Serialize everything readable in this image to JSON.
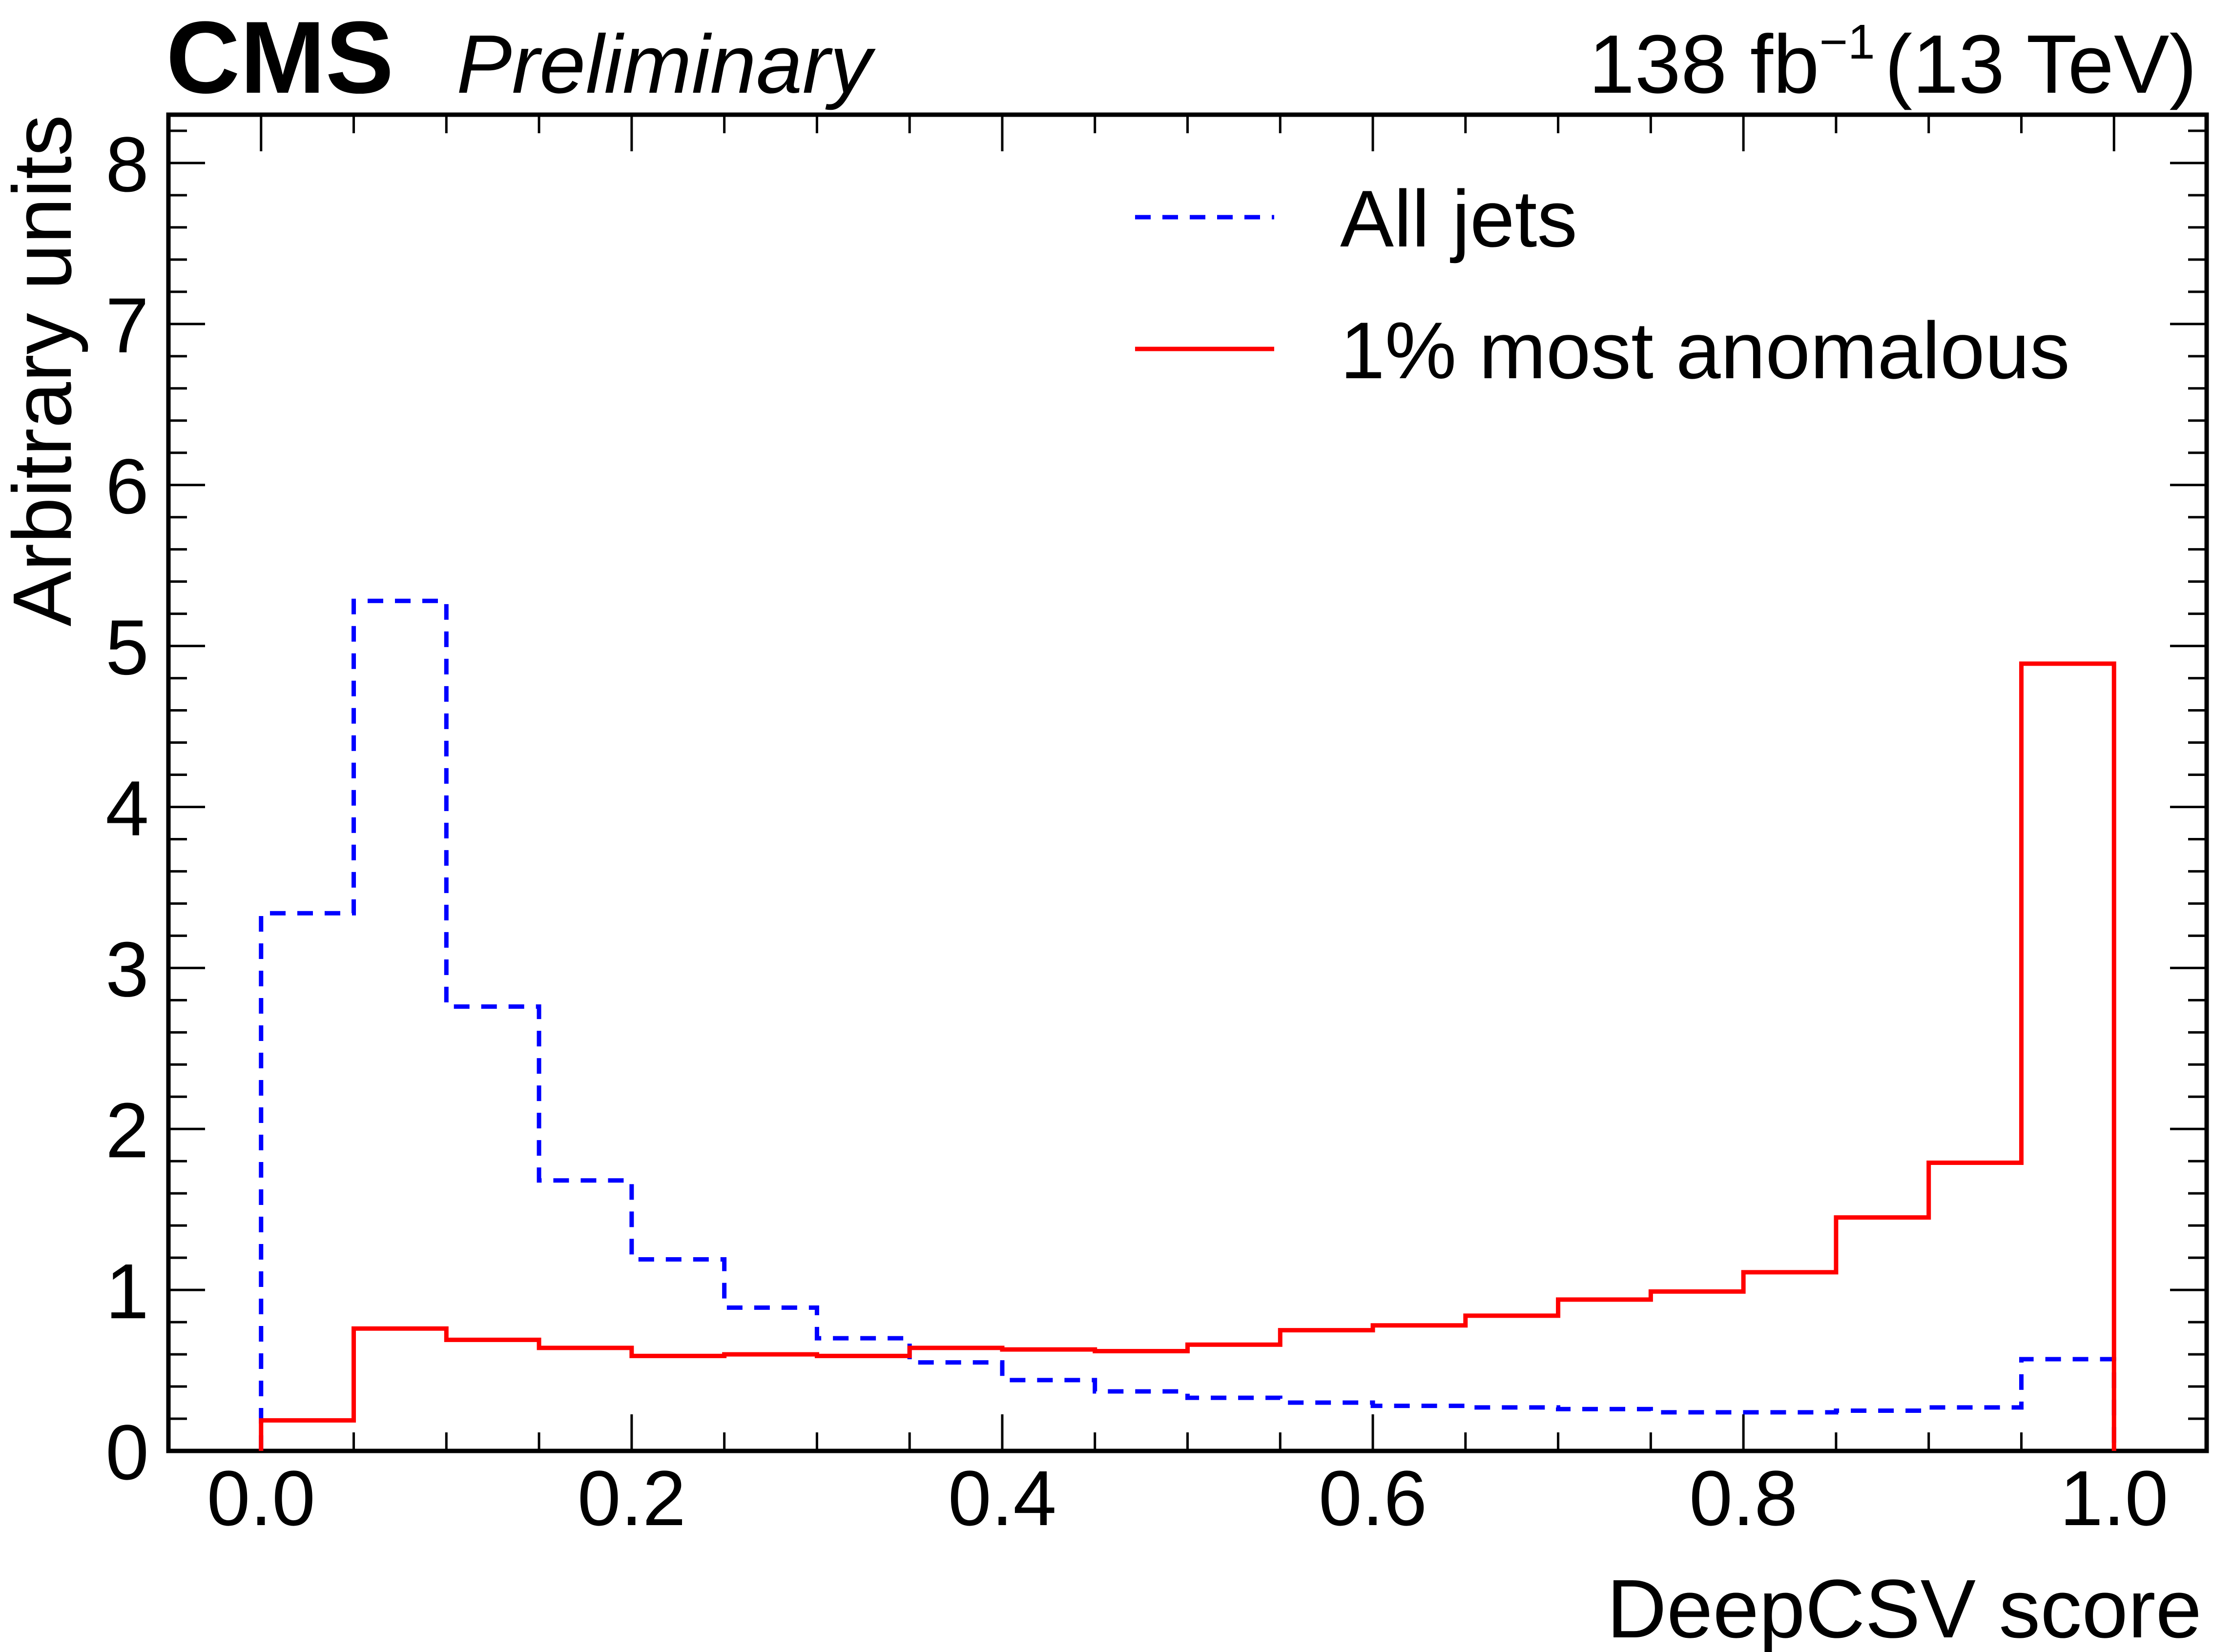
{
  "header": {
    "experiment": "CMS",
    "status": "Preliminary",
    "lumi_value": "138 fb",
    "lumi_superscript": "−1",
    "energy": "(13 TeV)"
  },
  "chart_data": {
    "type": "step-histogram",
    "xlabel": "DeepCSV score",
    "ylabel": "Arbitrary units",
    "xlim": [
      -0.05,
      1.05
    ],
    "ylim": [
      0,
      8.3
    ],
    "x_ticks": [
      0.0,
      0.2,
      0.4,
      0.6,
      0.8,
      1.0
    ],
    "x_tick_labels": [
      "0.0",
      "0.2",
      "0.4",
      "0.6",
      "0.8",
      "1.0"
    ],
    "y_ticks": [
      0,
      1,
      2,
      3,
      4,
      5,
      6,
      7,
      8
    ],
    "y_tick_labels": [
      "0",
      "1",
      "2",
      "3",
      "4",
      "5",
      "6",
      "7",
      "8"
    ],
    "bin_edges": [
      0.0,
      0.05,
      0.1,
      0.15,
      0.2,
      0.25,
      0.3,
      0.35,
      0.4,
      0.45,
      0.5,
      0.55,
      0.6,
      0.65,
      0.7,
      0.75,
      0.8,
      0.85,
      0.9,
      0.95,
      1.0
    ],
    "legend_position": "top-right",
    "series": [
      {
        "name": "All jets",
        "color": "#0000ff",
        "style": "dashed",
        "values": [
          3.34,
          5.28,
          2.76,
          1.68,
          1.19,
          0.89,
          0.7,
          0.55,
          0.44,
          0.37,
          0.33,
          0.3,
          0.28,
          0.27,
          0.26,
          0.24,
          0.24,
          0.25,
          0.27,
          0.57
        ]
      },
      {
        "name": "1% most anomalous",
        "color": "#ff0000",
        "style": "solid",
        "values": [
          0.19,
          0.76,
          0.69,
          0.64,
          0.59,
          0.6,
          0.59,
          0.64,
          0.63,
          0.62,
          0.66,
          0.75,
          0.78,
          0.84,
          0.94,
          0.99,
          1.11,
          1.45,
          1.79,
          4.89
        ]
      }
    ]
  }
}
